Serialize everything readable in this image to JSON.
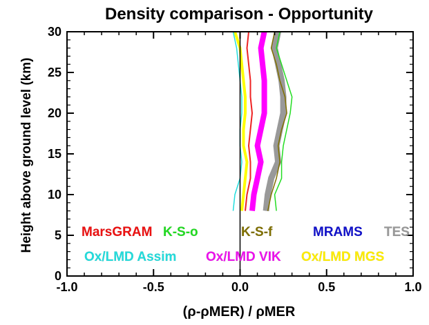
{
  "chart_data": {
    "type": "line",
    "title": "Density comparison - Opportunity",
    "xlabel": "(ρ-ρMER) / ρMER",
    "ylabel": "Height above ground level (km)",
    "xlim": [
      -1.0,
      1.0
    ],
    "ylim": [
      0,
      30
    ],
    "x_ticks": [
      "-1.0",
      "-0.5",
      "0.0",
      "0.5",
      "1.0"
    ],
    "y_ticks": [
      "0",
      "5",
      "10",
      "15",
      "20",
      "25",
      "30"
    ],
    "grid": false,
    "legend_placement": "bottom-inside",
    "reference_line_x": 0.0,
    "series": [
      {
        "name": "TES",
        "color": "#999999",
        "width": 9,
        "values": [
          [
            0.22,
            30
          ],
          [
            0.2,
            28
          ],
          [
            0.22,
            26
          ],
          [
            0.24,
            24
          ],
          [
            0.25,
            22
          ],
          [
            0.25,
            20
          ],
          [
            0.23,
            18
          ],
          [
            0.21,
            16
          ],
          [
            0.22,
            14
          ],
          [
            0.18,
            12
          ],
          [
            0.16,
            10
          ],
          [
            0.15,
            8
          ]
        ]
      },
      {
        "name": "Ox/LMD VIK",
        "color": "#ff00ff",
        "width": 8,
        "values": [
          [
            0.14,
            30
          ],
          [
            0.12,
            28
          ],
          [
            0.13,
            26
          ],
          [
            0.14,
            24
          ],
          [
            0.14,
            22
          ],
          [
            0.14,
            20
          ],
          [
            0.12,
            18
          ],
          [
            0.1,
            16
          ],
          [
            0.12,
            14
          ],
          [
            0.1,
            12
          ],
          [
            0.08,
            10
          ],
          [
            0.07,
            8
          ]
        ]
      },
      {
        "name": "K-S-o",
        "color": "#22dd22",
        "width": 1.5,
        "values": [
          [
            0.23,
            30
          ],
          [
            0.21,
            28
          ],
          [
            0.24,
            26
          ],
          [
            0.27,
            24
          ],
          [
            0.3,
            22
          ],
          [
            0.29,
            20
          ],
          [
            0.27,
            18
          ],
          [
            0.25,
            16
          ],
          [
            0.24,
            14
          ],
          [
            0.24,
            12
          ],
          [
            0.2,
            10
          ],
          [
            0.21,
            8
          ]
        ]
      },
      {
        "name": "K-S-f",
        "color": "#807000",
        "width": 1.5,
        "values": [
          [
            0.2,
            30
          ],
          [
            0.18,
            28
          ],
          [
            0.21,
            26
          ],
          [
            0.23,
            24
          ],
          [
            0.26,
            22
          ],
          [
            0.27,
            20
          ],
          [
            0.24,
            18
          ],
          [
            0.22,
            16
          ],
          [
            0.23,
            14
          ],
          [
            0.21,
            12
          ],
          [
            0.18,
            10
          ],
          [
            0.16,
            8
          ]
        ]
      },
      {
        "name": "MarsGRAM",
        "color": "#ee2222",
        "width": 2,
        "values": [
          [
            0.05,
            30
          ],
          [
            0.04,
            28
          ],
          [
            0.05,
            26
          ],
          [
            0.06,
            24
          ],
          [
            0.06,
            22
          ],
          [
            0.07,
            20
          ],
          [
            0.06,
            18
          ],
          [
            0.05,
            16
          ],
          [
            0.06,
            14
          ],
          [
            0.06,
            12
          ],
          [
            0.04,
            10
          ],
          [
            0.03,
            8
          ]
        ]
      },
      {
        "name": "Ox/LMD MGS",
        "color": "#ffff00",
        "width": 4,
        "values": [
          [
            -0.03,
            30
          ],
          [
            0.0,
            28
          ],
          [
            0.01,
            26
          ],
          [
            0.02,
            24
          ],
          [
            0.03,
            22
          ],
          [
            0.03,
            20
          ],
          [
            0.02,
            18
          ],
          [
            0.02,
            16
          ],
          [
            0.04,
            14
          ],
          [
            0.03,
            12
          ],
          [
            0.02,
            10
          ],
          [
            0.01,
            8
          ]
        ]
      },
      {
        "name": "Ox/LMD Assim",
        "color": "#22dddd",
        "width": 1.5,
        "values": [
          [
            -0.04,
            30
          ],
          [
            -0.02,
            28
          ],
          [
            -0.01,
            26
          ],
          [
            0.0,
            24
          ],
          [
            0.01,
            22
          ],
          [
            0.01,
            20
          ],
          [
            0.0,
            18
          ],
          [
            0.0,
            16
          ],
          [
            0.01,
            14
          ],
          [
            0.0,
            12
          ],
          [
            -0.03,
            10
          ],
          [
            -0.04,
            8
          ]
        ]
      }
    ],
    "legend_rows": [
      [
        {
          "label": "MarsGRAM",
          "color": "#ee1111"
        },
        {
          "label": "K-S-o",
          "color": "#22dd22"
        },
        {
          "label": "K-S-f",
          "color": "#807000"
        },
        {
          "label": "MRAMS",
          "color": "#1111cc"
        },
        {
          "label": "TES",
          "color": "#999999"
        }
      ],
      [
        {
          "label": "Ox/LMD Assim",
          "color": "#22dddd"
        },
        {
          "label": "Ox/LMD VIK",
          "color": "#ee11ee"
        },
        {
          "label": "Ox/LMD MGS",
          "color": "#ffee00"
        }
      ]
    ]
  }
}
